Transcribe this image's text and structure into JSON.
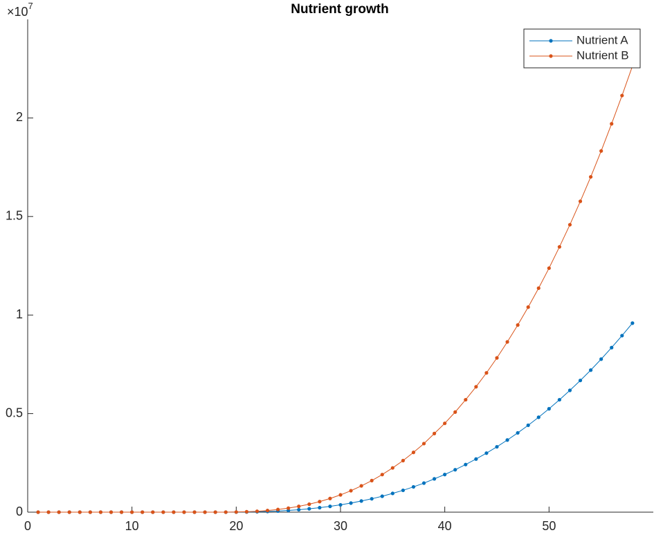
{
  "chart_data": {
    "type": "line",
    "title": "Nutrient growth",
    "y_multiplier": {
      "base": "×10",
      "power": "7"
    },
    "x": [
      1,
      2,
      3,
      4,
      5,
      6,
      7,
      8,
      9,
      10,
      11,
      12,
      13,
      14,
      15,
      16,
      17,
      18,
      19,
      20,
      21,
      22,
      23,
      24,
      25,
      26,
      27,
      28,
      29,
      30,
      31,
      32,
      33,
      34,
      35,
      36,
      37,
      38,
      39,
      40,
      41,
      42,
      43,
      44,
      45,
      46,
      47,
      48,
      49,
      50,
      51,
      52,
      53,
      54,
      55,
      56,
      57,
      58
    ],
    "series": [
      {
        "name": "Nutrient A",
        "color": "#0072BD",
        "values": [
          0,
          0,
          0,
          0,
          0,
          0,
          0,
          0,
          0,
          0,
          0,
          0,
          0,
          0,
          0,
          0,
          0,
          0,
          453,
          2945,
          8797,
          19117,
          34926,
          57169,
          86659,
          124303,
          170781,
          227045,
          293544,
          371460,
          460711,
          565092,
          678594,
          807699,
          951300,
          1108062,
          1284654,
          1473525,
          1690359,
          1909395,
          2151750,
          2416755,
          2695350,
          2994330,
          3315960,
          3660240,
          4022640,
          4407690,
          4815390,
          5245740,
          5703270,
          6178920,
          6681750,
          7207230,
          7764420,
          8348790,
          8955810,
          9590010
        ]
      },
      {
        "name": "Nutrient B",
        "color": "#D95319",
        "values": [
          0,
          0,
          0,
          0,
          0,
          0,
          0,
          0,
          0,
          0,
          0,
          0,
          0,
          0,
          0,
          0,
          0,
          0,
          1069,
          6950,
          20761,
          45116,
          82425,
          134919,
          204515,
          293355,
          403043,
          535826,
          692764,
          876646,
          1087278,
          1333617,
          1601482,
          1906170,
          2245068,
          2615026,
          3031783,
          3477519,
          3989247,
          4506172,
          5078130,
          5703542,
          6361026,
          7066619,
          7825666,
          8638166,
          9493430,
          10402148,
          11364320,
          12379946,
          13459717,
          14582251,
          15768930,
          17009063,
          18324031,
          19703144,
          21135712,
          22632424
        ]
      }
    ],
    "xlim": [
      0,
      60
    ],
    "xticks": [
      0,
      10,
      20,
      30,
      40,
      50
    ],
    "ylim": [
      0,
      25000000
    ],
    "yticks": [
      {
        "value": 0,
        "label": "0"
      },
      {
        "value": 5000000,
        "label": "0.5"
      },
      {
        "value": 10000000,
        "label": "1"
      },
      {
        "value": 15000000,
        "label": "1.5"
      },
      {
        "value": 20000000,
        "label": "2"
      }
    ],
    "grid": false,
    "legend": "northeast"
  }
}
